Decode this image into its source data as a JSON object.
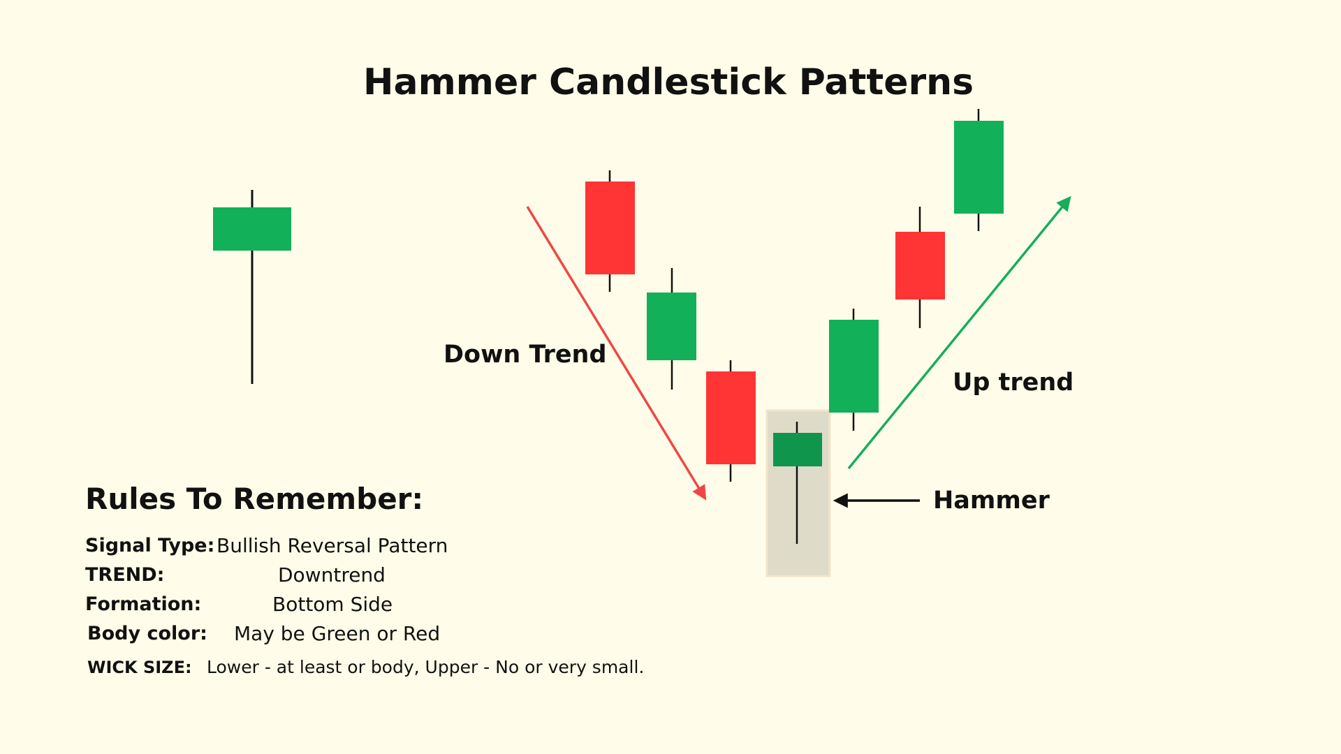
{
  "title": "Hammer Candlestick Patterns",
  "labels": {
    "down_trend": "Down Trend",
    "up_trend": "Up trend",
    "hammer": "Hammer"
  },
  "colors": {
    "background": "#fffde9",
    "bullish": "#12b058",
    "bearish": "#ff3434",
    "hammer_body": "#0f954c",
    "highlight": "#dedbc8",
    "down_arrow": "#f04646",
    "up_arrow": "#17ad5b",
    "wick": "#111111"
  },
  "rules": {
    "heading": "Rules To Remember:",
    "items": [
      {
        "key": "Signal Type:",
        "value": "Bullish Reversal Pattern"
      },
      {
        "key": "TREND:",
        "value": "Downtrend"
      },
      {
        "key": "Formation:",
        "value": "Bottom Side"
      },
      {
        "key": "Body color:",
        "value": "May be Green or Red"
      },
      {
        "key": "WICK SIZE:",
        "value": "Lower - at least or body, Upper - No or very small."
      }
    ]
  }
}
